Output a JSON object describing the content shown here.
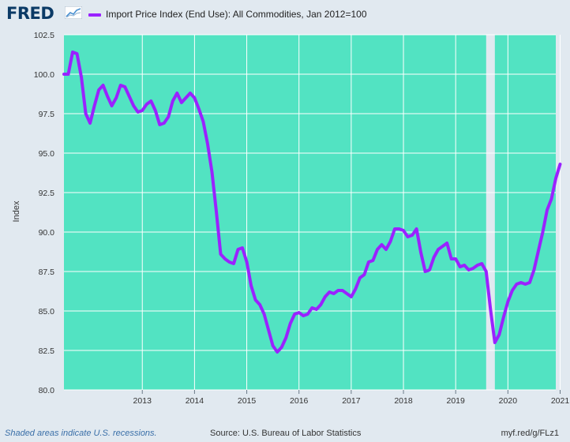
{
  "header": {
    "logo": "FRED",
    "legend_label": "Import Price Index (End Use): All Commodities, Jan 2012=100",
    "series_color": "#9a22ff"
  },
  "footer": {
    "recession_note": "Shaded areas indicate U.S. recessions.",
    "source": "Source: U.S. Bureau of Labor Statistics",
    "link": "myf.red/g/FLz1"
  },
  "chart_data": {
    "type": "line",
    "ylabel": "Index",
    "ylim": [
      80,
      102.5
    ],
    "yticks": [
      80.0,
      82.5,
      85.0,
      87.5,
      90.0,
      92.5,
      95.0,
      97.5,
      100.0,
      102.5
    ],
    "ytick_labels": [
      "80.0",
      "82.5",
      "85.0",
      "87.5",
      "90.0",
      "92.5",
      "95.0",
      "97.5",
      "100.0",
      "102.5"
    ],
    "xtick_labels": [
      "2013",
      "2014",
      "2015",
      "2016",
      "2017",
      "2018",
      "2019",
      "2020",
      "2021"
    ],
    "x_start": "2012-01",
    "x_end": "2021-06",
    "plot_background": "#52e3c2",
    "grid_color": "#ffffff",
    "grid": true,
    "recessions": [
      {
        "start": "2020-02",
        "end": "2020-04"
      }
    ],
    "series": [
      {
        "color": "#9a22ff",
        "points": [
          [
            "2012-01",
            100.0
          ],
          [
            "2012-02",
            100.0
          ],
          [
            "2012-03",
            101.4
          ],
          [
            "2012-04",
            101.3
          ],
          [
            "2012-05",
            99.8
          ],
          [
            "2012-06",
            97.5
          ],
          [
            "2012-07",
            96.9
          ],
          [
            "2012-08",
            98.0
          ],
          [
            "2012-09",
            99.0
          ],
          [
            "2012-10",
            99.3
          ],
          [
            "2012-11",
            98.6
          ],
          [
            "2012-12",
            98.0
          ],
          [
            "2013-01",
            98.5
          ],
          [
            "2013-02",
            99.3
          ],
          [
            "2013-03",
            99.2
          ],
          [
            "2013-04",
            98.6
          ],
          [
            "2013-05",
            98.0
          ],
          [
            "2013-06",
            97.6
          ],
          [
            "2013-07",
            97.7
          ],
          [
            "2013-08",
            98.1
          ],
          [
            "2013-09",
            98.3
          ],
          [
            "2013-10",
            97.7
          ],
          [
            "2013-11",
            96.8
          ],
          [
            "2013-12",
            96.9
          ],
          [
            "2014-01",
            97.3
          ],
          [
            "2014-02",
            98.3
          ],
          [
            "2014-03",
            98.8
          ],
          [
            "2014-04",
            98.2
          ],
          [
            "2014-05",
            98.5
          ],
          [
            "2014-06",
            98.8
          ],
          [
            "2014-07",
            98.5
          ],
          [
            "2014-08",
            97.8
          ],
          [
            "2014-09",
            97.0
          ],
          [
            "2014-10",
            95.6
          ],
          [
            "2014-11",
            93.8
          ],
          [
            "2014-12",
            91.3
          ],
          [
            "2015-01",
            88.6
          ],
          [
            "2015-02",
            88.3
          ],
          [
            "2015-03",
            88.1
          ],
          [
            "2015-04",
            88.0
          ],
          [
            "2015-05",
            88.9
          ],
          [
            "2015-06",
            89.0
          ],
          [
            "2015-07",
            88.1
          ],
          [
            "2015-08",
            86.6
          ],
          [
            "2015-09",
            85.7
          ],
          [
            "2015-10",
            85.4
          ],
          [
            "2015-11",
            84.8
          ],
          [
            "2015-12",
            83.8
          ],
          [
            "2016-01",
            82.8
          ],
          [
            "2016-02",
            82.4
          ],
          [
            "2016-03",
            82.7
          ],
          [
            "2016-04",
            83.3
          ],
          [
            "2016-05",
            84.2
          ],
          [
            "2016-06",
            84.8
          ],
          [
            "2016-07",
            84.9
          ],
          [
            "2016-08",
            84.7
          ],
          [
            "2016-09",
            84.8
          ],
          [
            "2016-10",
            85.2
          ],
          [
            "2016-11",
            85.1
          ],
          [
            "2016-12",
            85.4
          ],
          [
            "2017-01",
            85.9
          ],
          [
            "2017-02",
            86.2
          ],
          [
            "2017-03",
            86.1
          ],
          [
            "2017-04",
            86.3
          ],
          [
            "2017-05",
            86.3
          ],
          [
            "2017-06",
            86.1
          ],
          [
            "2017-07",
            85.9
          ],
          [
            "2017-08",
            86.4
          ],
          [
            "2017-09",
            87.1
          ],
          [
            "2017-10",
            87.3
          ],
          [
            "2017-11",
            88.1
          ],
          [
            "2017-12",
            88.2
          ],
          [
            "2018-01",
            88.9
          ],
          [
            "2018-02",
            89.2
          ],
          [
            "2018-03",
            88.9
          ],
          [
            "2018-04",
            89.4
          ],
          [
            "2018-05",
            90.2
          ],
          [
            "2018-06",
            90.2
          ],
          [
            "2018-07",
            90.1
          ],
          [
            "2018-08",
            89.7
          ],
          [
            "2018-09",
            89.8
          ],
          [
            "2018-10",
            90.2
          ],
          [
            "2018-11",
            88.7
          ],
          [
            "2018-12",
            87.5
          ],
          [
            "2019-01",
            87.6
          ],
          [
            "2019-02",
            88.4
          ],
          [
            "2019-03",
            88.9
          ],
          [
            "2019-04",
            89.1
          ],
          [
            "2019-05",
            89.3
          ],
          [
            "2019-06",
            88.3
          ],
          [
            "2019-07",
            88.3
          ],
          [
            "2019-08",
            87.8
          ],
          [
            "2019-09",
            87.9
          ],
          [
            "2019-10",
            87.6
          ],
          [
            "2019-11",
            87.7
          ],
          [
            "2019-12",
            87.9
          ],
          [
            "2020-01",
            88.0
          ],
          [
            "2020-02",
            87.5
          ],
          [
            "2020-03",
            85.1
          ],
          [
            "2020-04",
            83.0
          ],
          [
            "2020-05",
            83.5
          ],
          [
            "2020-06",
            84.6
          ],
          [
            "2020-07",
            85.6
          ],
          [
            "2020-08",
            86.3
          ],
          [
            "2020-09",
            86.7
          ],
          [
            "2020-10",
            86.8
          ],
          [
            "2020-11",
            86.7
          ],
          [
            "2020-12",
            86.8
          ],
          [
            "2021-01",
            87.6
          ],
          [
            "2021-02",
            88.8
          ],
          [
            "2021-03",
            90.0
          ],
          [
            "2021-04",
            91.4
          ],
          [
            "2021-05",
            92.1
          ],
          [
            "2021-06",
            93.4
          ],
          [
            "2021-07",
            94.3
          ]
        ]
      }
    ]
  }
}
